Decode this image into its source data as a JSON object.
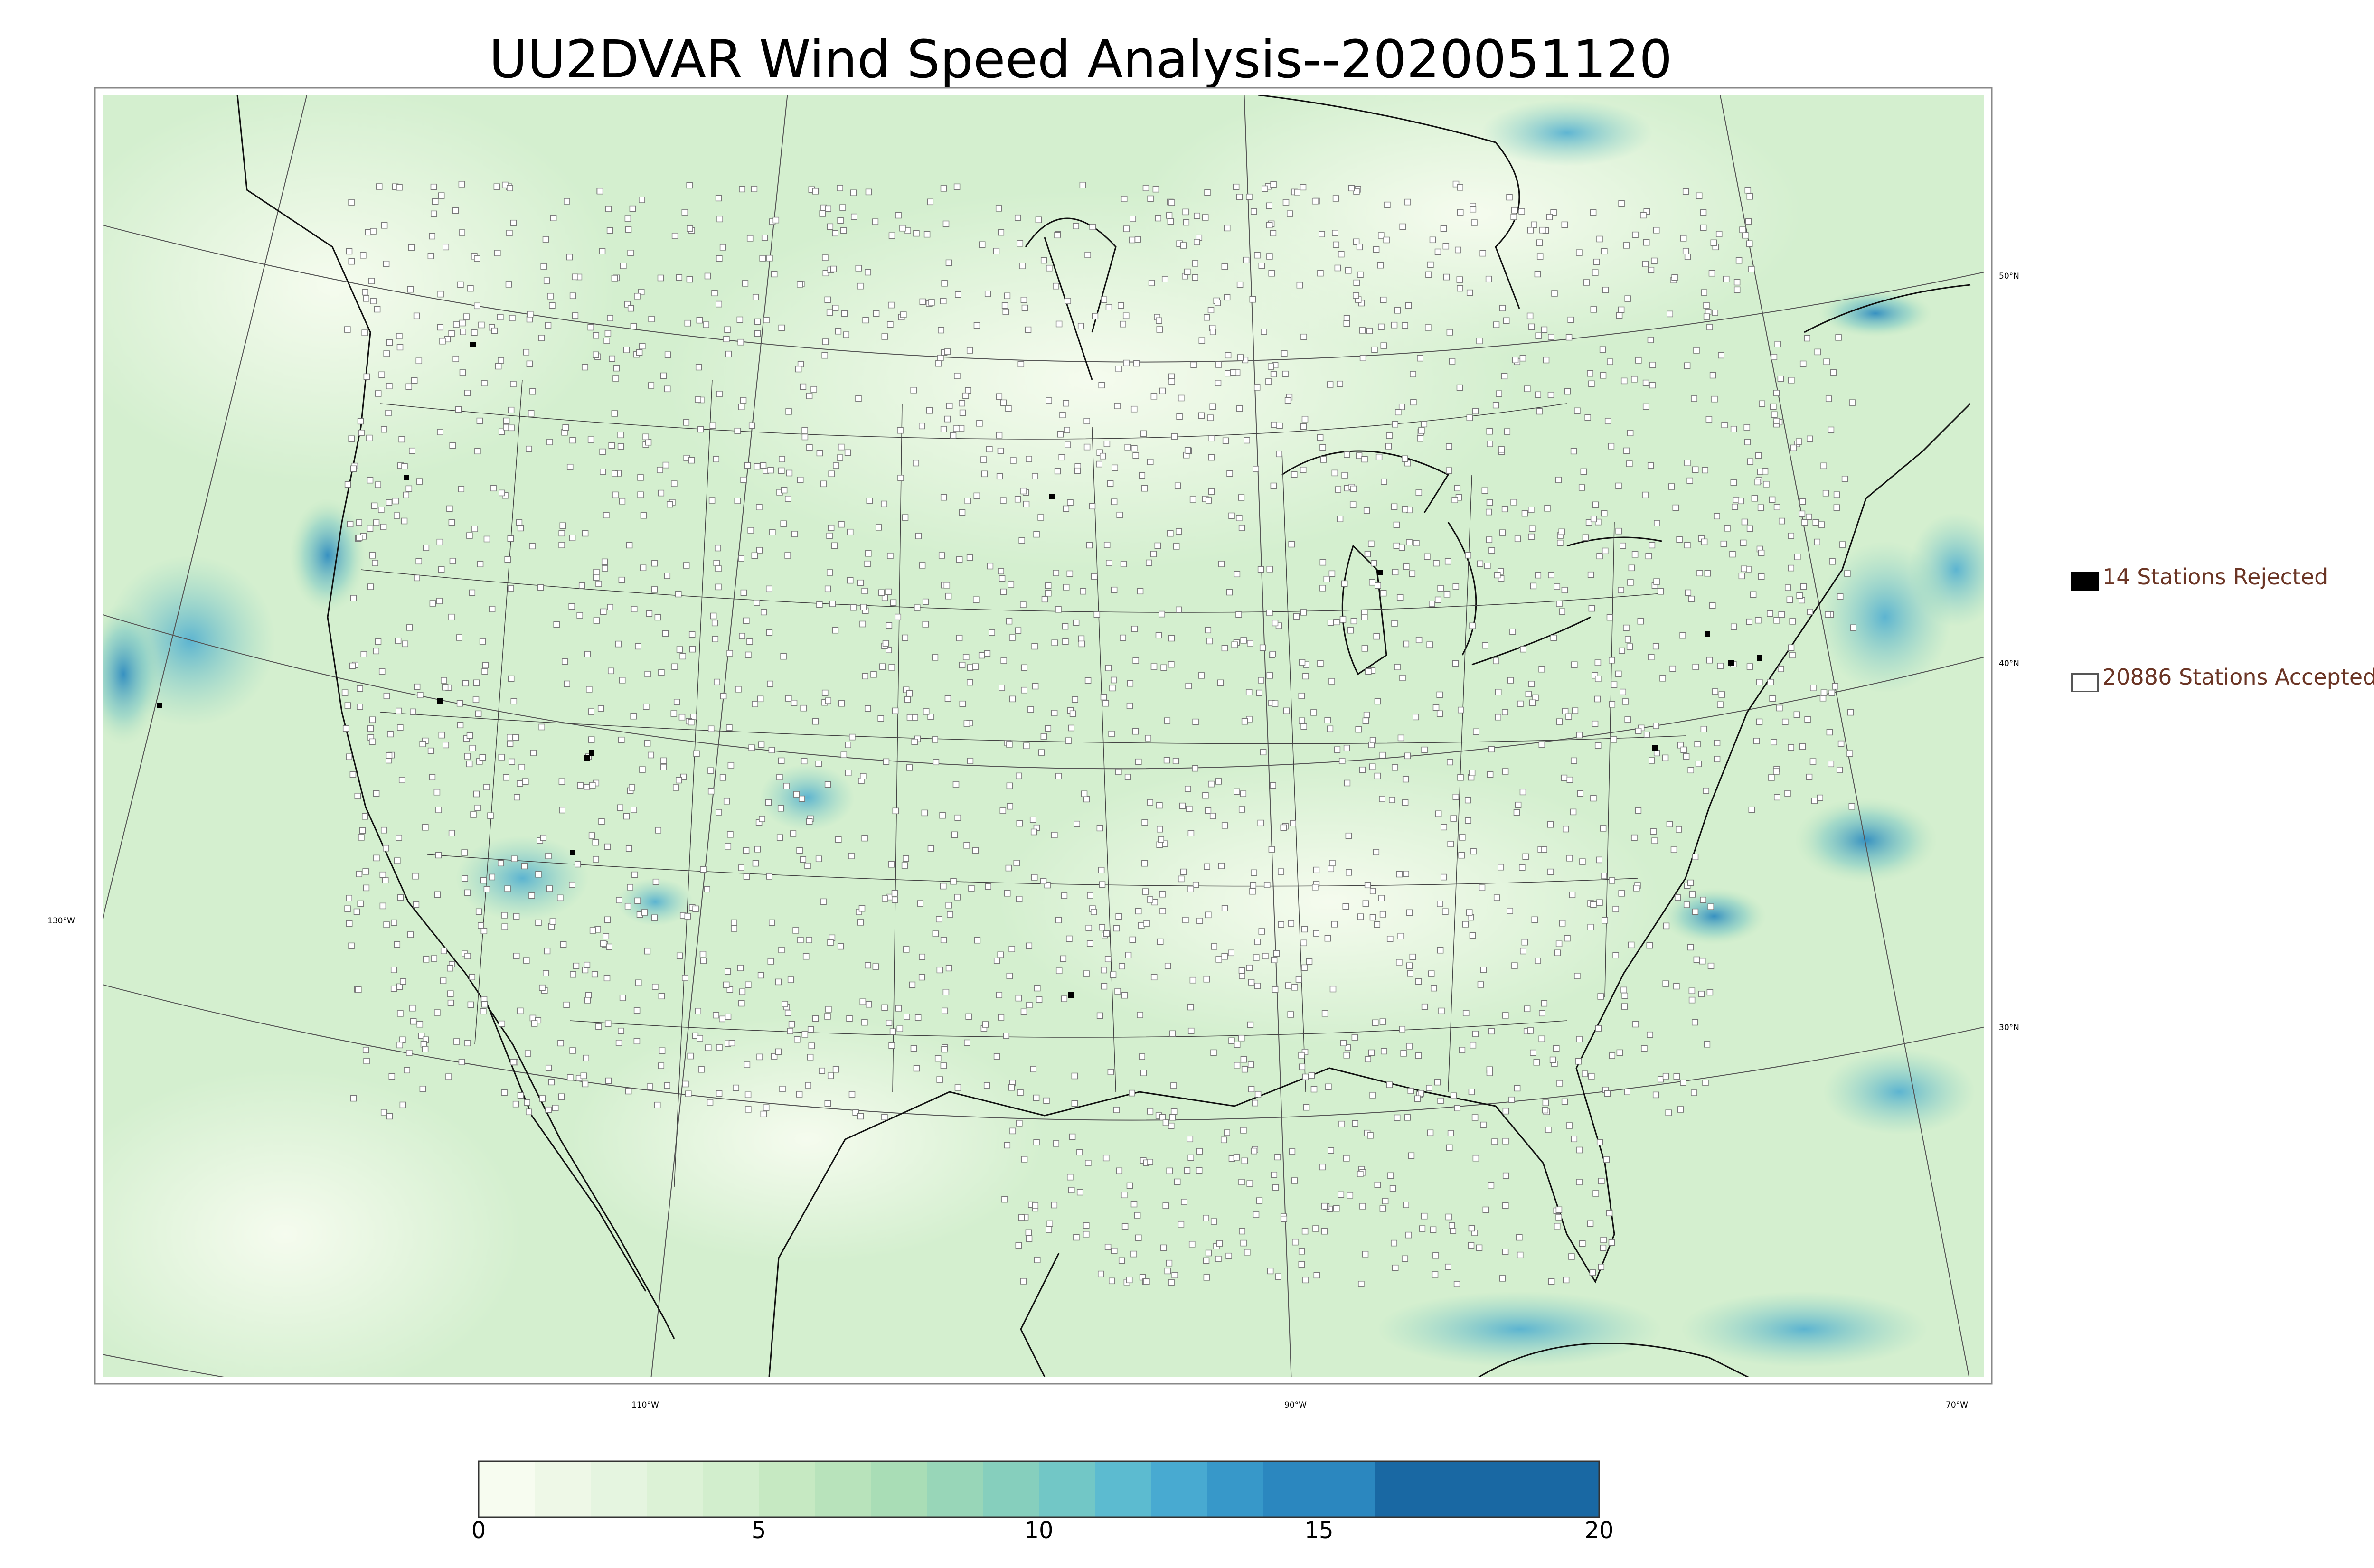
{
  "title": "UU2DVAR Wind Speed Analysis--2020051120",
  "legend": {
    "rejected": {
      "label": "14 Stations Rejected",
      "count": 14,
      "color": "#000000"
    },
    "accepted": {
      "label": "20886 Stations Accepted",
      "count": 20886,
      "color": "#ffffff"
    }
  },
  "graticule": {
    "latitudes": [
      "50°N",
      "40°N",
      "30°N"
    ],
    "longitudes": [
      "130°W",
      "110°W",
      "90°W",
      "70°W"
    ]
  },
  "colorbar": {
    "min": 0,
    "max": 20,
    "ticks": [
      "0",
      "5",
      "10",
      "15",
      "20"
    ],
    "tick_values": [
      0,
      5,
      10,
      15,
      20
    ],
    "bounds": [
      0,
      1,
      2,
      3,
      4,
      5,
      6,
      7,
      8,
      9,
      10,
      11,
      12,
      13,
      14,
      16,
      20
    ],
    "colors": [
      "#f7fcf0",
      "#eef8e7",
      "#e5f5e0",
      "#dcf2d6",
      "#d2eecd",
      "#c6e9c2",
      "#b8e3bb",
      "#a9ddb6",
      "#98d6b8",
      "#86cfbd",
      "#72c7c6",
      "#5cbbd0",
      "#48aad1",
      "#3798c9",
      "#2b87bf",
      "#1968a3"
    ]
  }
}
